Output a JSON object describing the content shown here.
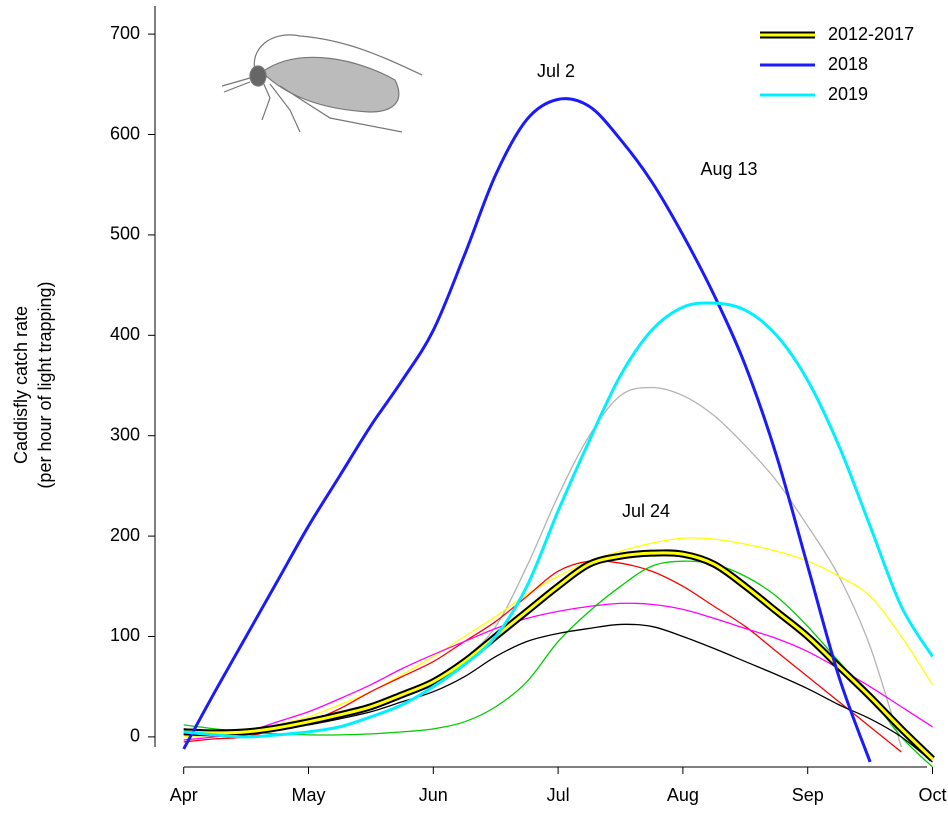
{
  "chart_data": {
    "type": "line",
    "y_label": [
      "Caddisfly catch rate",
      "(per hour of light trapping)"
    ],
    "annotations": [
      "Jul 2",
      "Aug 13",
      "Jul 24"
    ],
    "x": [
      0,
      0.25,
      0.5,
      0.75,
      1,
      1.25,
      1.5,
      1.75,
      2,
      2.25,
      2.5,
      2.75,
      3,
      3.25,
      3.5,
      3.75,
      4,
      4.25,
      4.5,
      4.75,
      5,
      5.25,
      5.5,
      5.75,
      6
    ],
    "xlim": [
      -0.23,
      6.02
    ],
    "xticks": [
      {
        "value": 0,
        "label": "Apr"
      },
      {
        "value": 1,
        "label": "May"
      },
      {
        "value": 2,
        "label": "Jun"
      },
      {
        "value": 3,
        "label": "Jul"
      },
      {
        "value": 4,
        "label": "Aug"
      },
      {
        "value": 5,
        "label": "Sep"
      },
      {
        "value": 6,
        "label": "Oct"
      }
    ],
    "ylim": [
      -30,
      730
    ],
    "yticks": [
      0,
      100,
      200,
      300,
      400,
      500,
      600,
      700
    ],
    "legend": "top-right",
    "series": [
      {
        "color": "#b3b3b3",
        "values": [
          8,
          6,
          5,
          9,
          15,
          22,
          30,
          42,
          55,
          78,
          110,
          170,
          240,
          300,
          340,
          348,
          340,
          320,
          290,
          255,
          210,
          160,
          90,
          -10,
          null
        ]
      },
      {
        "color": "#ffff00",
        "values": [
          0,
          2,
          5,
          12,
          20,
          32,
          45,
          62,
          80,
          100,
          120,
          142,
          160,
          175,
          185,
          193,
          198,
          197,
          192,
          185,
          175,
          160,
          140,
          100,
          52
        ]
      },
      {
        "color": "#ff0000",
        "values": [
          -5,
          -2,
          0,
          8,
          15,
          28,
          45,
          60,
          75,
          95,
          115,
          140,
          165,
          175,
          173,
          165,
          150,
          130,
          110,
          85,
          60,
          35,
          10,
          -15,
          null
        ]
      },
      {
        "color": "#00cc00",
        "values": [
          12,
          8,
          5,
          3,
          2,
          2,
          3,
          5,
          8,
          15,
          30,
          55,
          95,
          125,
          150,
          170,
          175,
          172,
          160,
          140,
          110,
          75,
          40,
          0,
          -30
        ]
      },
      {
        "color": "#ff00ff",
        "values": [
          -3,
          0,
          5,
          15,
          25,
          38,
          52,
          68,
          82,
          95,
          108,
          118,
          125,
          130,
          133,
          132,
          127,
          118,
          108,
          98,
          85,
          68,
          50,
          30,
          10
        ]
      },
      {
        "color": "#000000",
        "values": [
          8,
          6,
          5,
          8,
          12,
          18,
          25,
          35,
          45,
          60,
          80,
          95,
          103,
          108,
          112,
          110,
          100,
          88,
          75,
          62,
          48,
          32,
          18,
          0,
          -25
        ]
      },
      {
        "name": "2012-2017",
        "color": "#ffff00",
        "values": [
          5,
          4,
          5,
          9,
          15,
          22,
          30,
          42,
          55,
          75,
          100,
          125,
          150,
          172,
          180,
          183,
          182,
          172,
          150,
          125,
          100,
          70,
          40,
          8,
          -22
        ]
      },
      {
        "name": "2018",
        "color": "#1a1aff",
        "values": [
          -12,
          45,
          100,
          155,
          210,
          260,
          310,
          355,
          405,
          480,
          560,
          615,
          635,
          628,
          595,
          553,
          500,
          440,
          370,
          280,
          170,
          60,
          -25,
          null,
          null
        ]
      },
      {
        "name": "2019",
        "color": "#00f0ff",
        "values": [
          5,
          2,
          0,
          2,
          5,
          10,
          20,
          32,
          50,
          72,
          100,
          150,
          225,
          295,
          360,
          405,
          428,
          432,
          425,
          400,
          355,
          290,
          210,
          130,
          80
        ]
      }
    ]
  }
}
